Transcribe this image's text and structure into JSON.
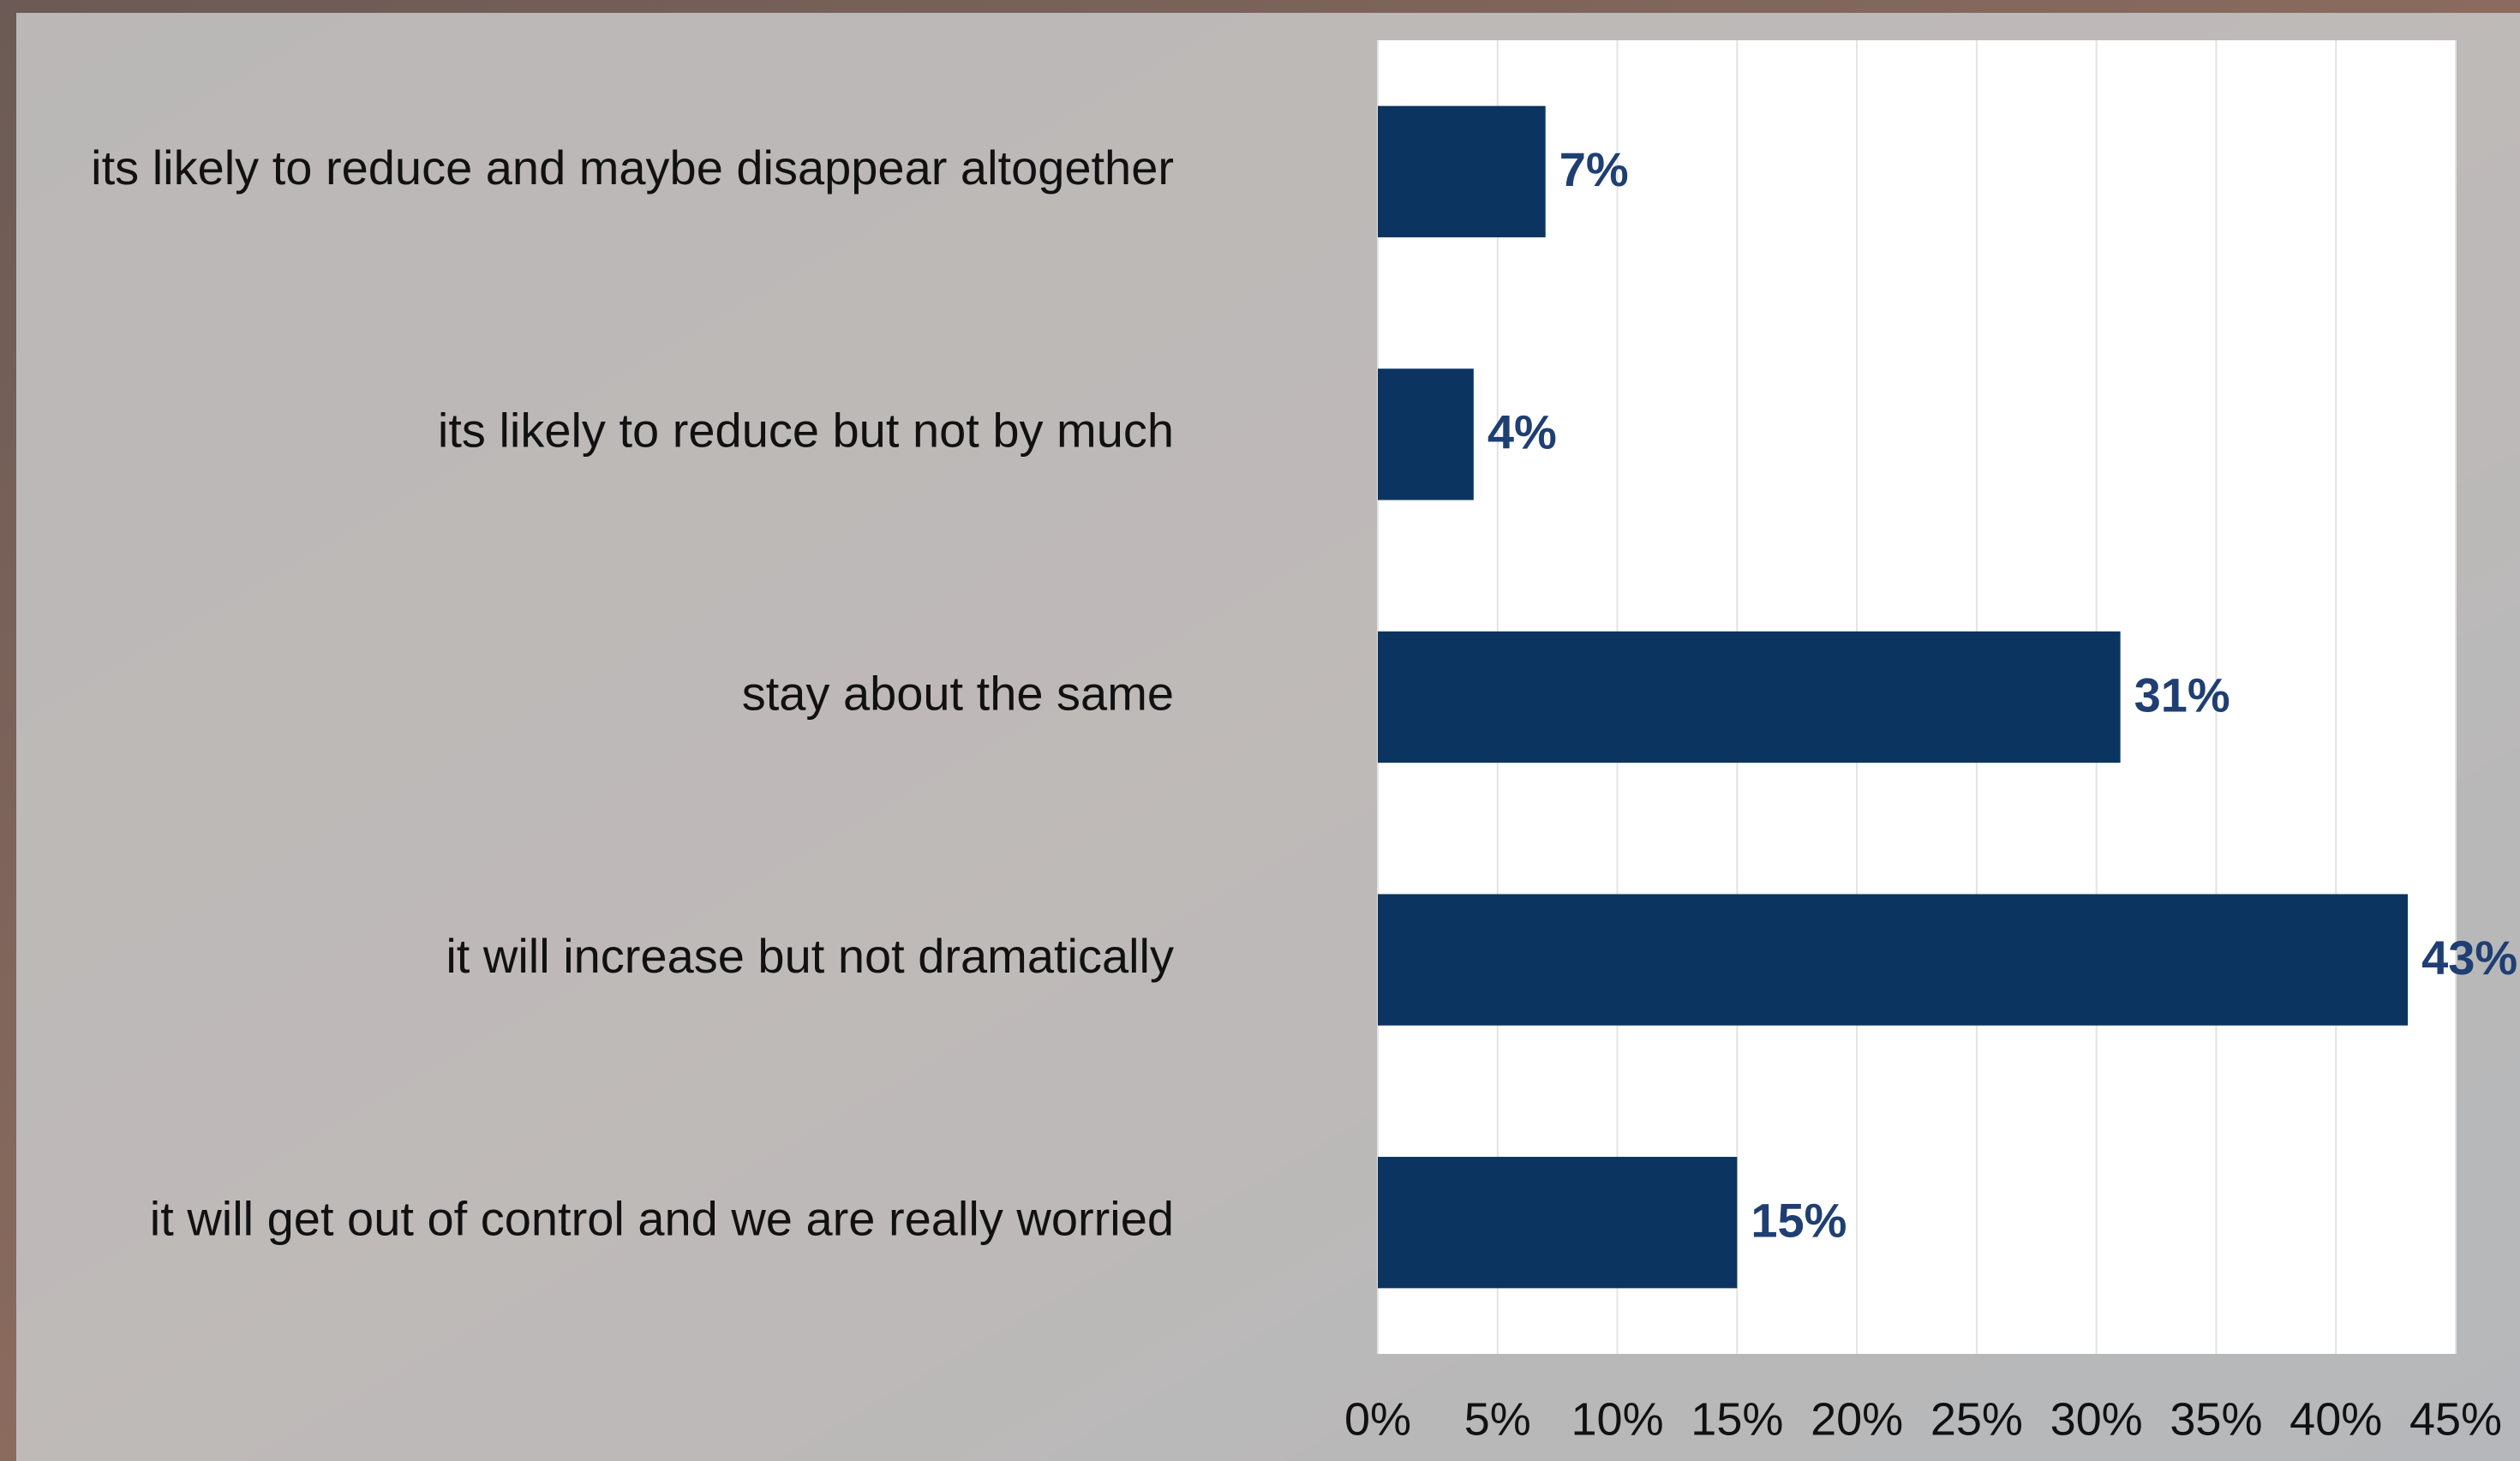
{
  "chart_data": {
    "type": "bar",
    "orientation": "horizontal",
    "categories": [
      "its likely to reduce and maybe disappear altogether",
      "its likely to reduce but not by much",
      "stay about the same",
      "it will increase but not dramatically",
      "it will get out of control and we are really worried"
    ],
    "values": [
      7,
      4,
      31,
      43,
      15
    ],
    "value_labels": [
      "7%",
      "4%",
      "31%",
      "43%",
      "15%"
    ],
    "color": "#0b3560",
    "xlim": [
      0,
      45
    ],
    "xticks": [
      {
        "value": 0,
        "label": "0%"
      },
      {
        "value": 5,
        "label": "5%"
      },
      {
        "value": 10,
        "label": "10%"
      },
      {
        "value": 15,
        "label": "15%"
      },
      {
        "value": 20,
        "label": "20%"
      },
      {
        "value": 25,
        "label": "25%"
      },
      {
        "value": 30,
        "label": "30%"
      },
      {
        "value": 35,
        "label": "35%"
      },
      {
        "value": 40,
        "label": "40%"
      },
      {
        "value": 45,
        "label": "45%"
      }
    ],
    "grid": true
  }
}
